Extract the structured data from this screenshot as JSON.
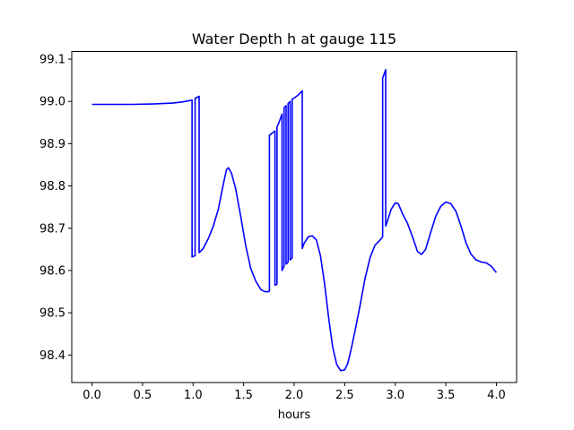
{
  "chart_data": {
    "type": "line",
    "title": "Water Depth h at gauge 115",
    "xlabel": "hours",
    "ylabel": "",
    "xlim": [
      -0.2,
      4.2
    ],
    "ylim": [
      98.335,
      99.118
    ],
    "grid": false,
    "xticks": [
      0.0,
      0.5,
      1.0,
      1.5,
      2.0,
      2.5,
      3.0,
      3.5,
      4.0
    ],
    "xtick_labels": [
      "0.0",
      "0.5",
      "1.0",
      "1.5",
      "2.0",
      "2.5",
      "3.0",
      "3.5",
      "4.0"
    ],
    "yticks": [
      98.4,
      98.5,
      98.6,
      98.7,
      98.8,
      98.9,
      99.0,
      99.1
    ],
    "ytick_labels": [
      "98.4",
      "98.5",
      "98.6",
      "98.7",
      "98.8",
      "98.9",
      "99.0",
      "99.1"
    ],
    "series": [
      {
        "color": "#0000ff",
        "x": [
          0.0,
          0.2,
          0.4,
          0.6,
          0.8,
          0.9,
          0.99,
          0.99,
          1.02,
          1.02,
          1.06,
          1.06,
          1.1,
          1.15,
          1.2,
          1.25,
          1.3,
          1.33,
          1.35,
          1.38,
          1.42,
          1.47,
          1.52,
          1.57,
          1.62,
          1.67,
          1.71,
          1.75,
          1.755,
          1.755,
          1.8,
          1.81,
          1.81,
          1.83,
          1.83,
          1.85,
          1.88,
          1.88,
          1.9,
          1.9,
          1.92,
          1.92,
          1.94,
          1.94,
          1.96,
          1.96,
          1.98,
          1.98,
          2.0,
          2.04,
          2.08,
          2.08,
          2.1,
          2.14,
          2.18,
          2.22,
          2.26,
          2.3,
          2.34,
          2.38,
          2.42,
          2.46,
          2.5,
          2.53,
          2.56,
          2.6,
          2.65,
          2.7,
          2.75,
          2.8,
          2.85,
          2.875,
          2.875,
          2.905,
          2.905,
          2.92,
          2.96,
          3.0,
          3.03,
          3.07,
          3.12,
          3.17,
          3.22,
          3.26,
          3.3,
          3.35,
          3.4,
          3.45,
          3.5,
          3.55,
          3.6,
          3.65,
          3.7,
          3.75,
          3.8,
          3.85,
          3.9,
          3.95,
          4.0
        ],
        "y": [
          98.993,
          98.993,
          98.993,
          98.994,
          98.996,
          98.999,
          99.003,
          98.632,
          98.635,
          99.007,
          99.012,
          98.642,
          98.652,
          98.675,
          98.705,
          98.745,
          98.805,
          98.838,
          98.843,
          98.83,
          98.795,
          98.73,
          98.66,
          98.605,
          98.575,
          98.555,
          98.55,
          98.55,
          98.552,
          98.92,
          98.928,
          98.93,
          98.565,
          98.568,
          98.94,
          98.95,
          98.97,
          98.6,
          98.61,
          98.985,
          98.99,
          98.615,
          98.62,
          98.995,
          99.0,
          98.625,
          98.63,
          99.005,
          99.008,
          99.015,
          99.025,
          98.652,
          98.665,
          98.68,
          98.682,
          98.672,
          98.635,
          98.57,
          98.49,
          98.42,
          98.378,
          98.363,
          98.365,
          98.38,
          98.41,
          98.455,
          98.515,
          98.58,
          98.63,
          98.66,
          98.672,
          98.68,
          99.055,
          99.075,
          98.705,
          98.715,
          98.745,
          98.76,
          98.758,
          98.735,
          98.712,
          98.68,
          98.645,
          98.638,
          98.65,
          98.69,
          98.728,
          98.752,
          98.762,
          98.758,
          98.74,
          98.705,
          98.665,
          98.638,
          98.625,
          98.62,
          98.618,
          98.61,
          98.595
        ]
      }
    ]
  }
}
